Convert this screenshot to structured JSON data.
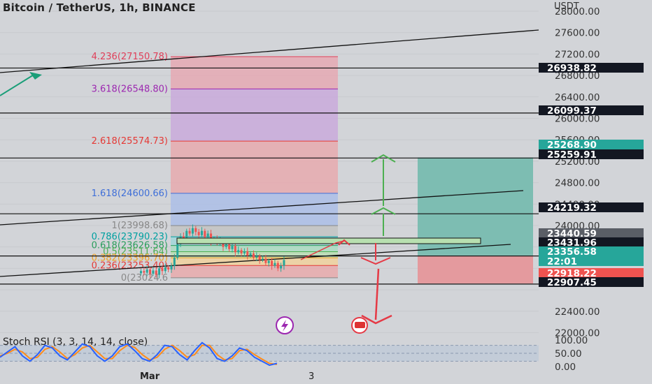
{
  "header": {
    "title": "Bitcoin / TetherUS, 1h, BINANCE",
    "currency": "USDT"
  },
  "price_axis": {
    "ticks": [
      "28000.00",
      "27600.00",
      "27200.00",
      "26800.00",
      "26400.00",
      "26000.00",
      "25600.00",
      "25200.00",
      "24800.00",
      "24400.00",
      "24000.00",
      "22400.00",
      "22000.00"
    ]
  },
  "price_labels": [
    {
      "text": "26938.82",
      "style": "dark"
    },
    {
      "text": "26099.37",
      "style": "dark"
    },
    {
      "text": "25268.90",
      "style": "green"
    },
    {
      "text": "25259.91",
      "style": "dark"
    },
    {
      "text": "24219.32",
      "style": "dark"
    },
    {
      "text": "23440.59",
      "style": "gray"
    },
    {
      "text": "23431.96",
      "style": "dark"
    },
    {
      "text": "23356.58",
      "style": "green"
    },
    {
      "text": "22:01",
      "style": "green"
    },
    {
      "text": "22918.22",
      "style": "red"
    },
    {
      "text": "22907.45",
      "style": "dark"
    }
  ],
  "fib_labels": [
    {
      "text": "4.236(27150.78)",
      "color": "#e0405a"
    },
    {
      "text": "3.618(26548.80)",
      "color": "#9c27b0"
    },
    {
      "text": "2.618(25574.73)",
      "color": "#e53935"
    },
    {
      "text": "1.618(24600.66)",
      "color": "#3f6fd8"
    },
    {
      "text": "1(23998.68)",
      "color": "#888888"
    },
    {
      "text": "0.786(23790.23)",
      "color": "#00a0a0"
    },
    {
      "text": "0.618(23626.58)",
      "color": "#2a9d5c"
    },
    {
      "text": "0.5(23511.64)",
      "color": "#4caf50"
    },
    {
      "text": "0.382(23396.70)",
      "color": "#f0a020"
    },
    {
      "text": "0.236(23253.40)",
      "color": "#e53935"
    },
    {
      "text": "0(23024.6",
      "color": "#888888"
    }
  ],
  "stoch": {
    "label": "Stoch RSI (3, 3, 14, 14, close)",
    "ticks": [
      "100.00",
      "50.00",
      "0.00"
    ],
    "k_values": [
      35,
      55,
      75,
      40,
      20,
      45,
      80,
      70,
      40,
      25,
      55,
      85,
      75,
      40,
      20,
      40,
      75,
      85,
      60,
      30,
      20,
      45,
      80,
      75,
      45,
      25,
      60,
      90,
      70,
      30,
      20,
      40,
      70,
      60,
      35,
      20,
      5,
      12
    ],
    "d_values": [
      40,
      50,
      65,
      55,
      30,
      35,
      65,
      75,
      55,
      30,
      45,
      70,
      80,
      55,
      30,
      30,
      60,
      80,
      72,
      45,
      25,
      35,
      65,
      80,
      60,
      35,
      45,
      80,
      80,
      45,
      25,
      30,
      60,
      65,
      45,
      28,
      12,
      8
    ]
  },
  "time_axis": {
    "labels": [
      "Mar",
      "3"
    ]
  },
  "colors": {
    "background": "#d2d4d8",
    "candle_up": "#26a69a",
    "candle_down": "#ef5350",
    "long_profit": "#7dbdb2",
    "long_loss": "#e49a9e",
    "arrow_up": "#4caf50",
    "arrow_down": "#e53945"
  },
  "icons": {
    "lightning": "lightning-icon",
    "flag": "us-flag-icon"
  },
  "chart_data": {
    "type": "candlestick",
    "title": "Bitcoin / TetherUS, 1h, BINANCE",
    "ylabel": "USDT",
    "ylim": [
      21900,
      28100
    ],
    "candles_close": [
      23150,
      23120,
      23180,
      23100,
      23160,
      23080,
      23200,
      23150,
      23220,
      23180,
      23250,
      23400,
      23650,
      23800,
      23750,
      23900,
      23850,
      23950,
      23880,
      23820,
      23900,
      23780,
      23850,
      23700,
      23760,
      23680,
      23720,
      23600,
      23650,
      23560,
      23620,
      23500,
      23540,
      23480,
      23520,
      23440,
      23480,
      23400,
      23430,
      23360,
      23380,
      23300,
      23340,
      23250,
      23300,
      23200,
      23250,
      23356
    ],
    "fibonacci": [
      {
        "level": 4.236,
        "price": 27150.78
      },
      {
        "level": 3.618,
        "price": 26548.8
      },
      {
        "level": 2.618,
        "price": 25574.73
      },
      {
        "level": 1.618,
        "price": 24600.66
      },
      {
        "level": 1,
        "price": 23998.68
      },
      {
        "level": 0.786,
        "price": 23790.23
      },
      {
        "level": 0.618,
        "price": 23626.58
      },
      {
        "level": 0.5,
        "price": 23511.64
      },
      {
        "level": 0.382,
        "price": 23396.7
      },
      {
        "level": 0.236,
        "price": 23253.4
      },
      {
        "level": 0,
        "price": 23024.6
      }
    ],
    "horizontal_levels": [
      26938.82,
      26099.37,
      25259.91,
      24219.32,
      23431.96,
      22907.45
    ],
    "position": {
      "entry": 23440.59,
      "target": 25268.9,
      "stop": 22918.22
    },
    "last_price": 23356.58
  }
}
